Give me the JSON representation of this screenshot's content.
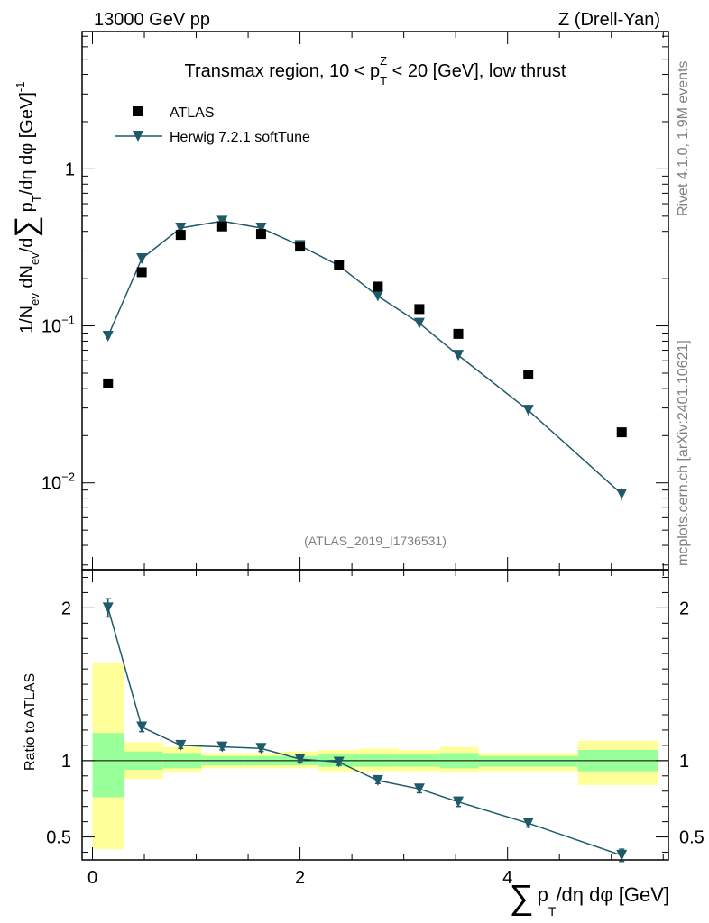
{
  "header": {
    "energy_label": "13000 GeV pp",
    "process_label": "Z (Drell-Yan)"
  },
  "side_labels": {
    "rivet_label": "Rivet 4.1.0,  1.9M events",
    "source_label": "mcplots.cern.ch [arXiv:2401.10621]"
  },
  "colors": {
    "data": "#000000",
    "mc": "#1f5a6b",
    "band_inner": "#99ff99",
    "band_outer": "#ffff99"
  },
  "chart_data": [
    {
      "type": "scatter",
      "panel": "main",
      "title": "Transmax region, 10 < p_T^Z < 20 [GeV], low thrust",
      "title_parts": {
        "prefix": "Transmax region, 10 < p",
        "sub": "T",
        "sup": "Z",
        "suffix": " < 20 [GeV], low thrust"
      },
      "ylabel": "1/N_ev dN_ev/d∑ p_T /dη dφ  [GeV]^-1",
      "ylabel_parts": {
        "a": "1/N",
        "a_sub": "ev",
        "b": " dN",
        "b_sub": "ev",
        "c": "/d",
        "sum": "∑",
        "d": "p",
        "d_sub": "T",
        "e": "/dη dφ  [GeV]",
        "e_sup": "-1"
      },
      "yscale": "log",
      "ylim": [
        0.0028,
        7.5
      ],
      "xlim": [
        -0.1,
        5.55
      ],
      "y_ticks": [
        {
          "v": 0.01,
          "base": "10",
          "exp": "−2"
        },
        {
          "v": 0.1,
          "base": "10",
          "exp": "−1"
        },
        {
          "v": 1,
          "base": "1",
          "exp": ""
        }
      ],
      "analysis_label": "(ATLAS_2019_I1736531)",
      "legend_position": "top-left",
      "series": [
        {
          "name": "ATLAS",
          "marker": "square",
          "x": [
            0.15,
            0.475,
            0.85,
            1.25,
            1.625,
            2.0,
            2.375,
            2.75,
            3.15,
            3.525,
            4.2,
            5.1
          ],
          "y": [
            0.043,
            0.22,
            0.38,
            0.43,
            0.385,
            0.32,
            0.245,
            0.178,
            0.128,
            0.089,
            0.049,
            0.021
          ]
        },
        {
          "name": "Herwig 7.2.1 softTune",
          "marker": "triangle-down",
          "x": [
            0.15,
            0.475,
            0.85,
            1.25,
            1.625,
            2.0,
            2.375,
            2.75,
            3.15,
            3.525,
            4.2,
            5.1
          ],
          "y": [
            0.086,
            0.268,
            0.42,
            0.465,
            0.42,
            0.325,
            0.242,
            0.155,
            0.104,
            0.065,
            0.029,
            0.0085
          ],
          "yerr": [
            0.003,
            0.006,
            0.008,
            0.009,
            0.008,
            0.006,
            0.005,
            0.004,
            0.003,
            0.002,
            0.0012,
            0.0008
          ]
        }
      ]
    },
    {
      "type": "scatter",
      "panel": "ratio",
      "ylabel": "Ratio to ATLAS",
      "xlabel": "∑ p_T /dη dφ [GeV]",
      "xlabel_parts": {
        "sum": "∑",
        "p": "p",
        "sub": "T",
        "rest": "/dη dφ [GeV]"
      },
      "ylim": [
        0.35,
        2.25
      ],
      "xlim": [
        -0.1,
        5.55
      ],
      "x_ticks": [
        0,
        2,
        4
      ],
      "y_ticks": [
        0.5,
        1,
        2
      ],
      "y_tick_labels": [
        "0.5",
        "1",
        "2"
      ],
      "x_tick_labels": [
        "0",
        "2",
        "4"
      ],
      "reference_line": 1,
      "bands": [
        {
          "x0": 0.0,
          "x1": 0.3,
          "inner": [
            0.76,
            1.18
          ],
          "outer": [
            0.42,
            1.64
          ]
        },
        {
          "x0": 0.3,
          "x1": 0.68,
          "inner": [
            0.94,
            1.06
          ],
          "outer": [
            0.88,
            1.12
          ]
        },
        {
          "x0": 0.68,
          "x1": 1.05,
          "inner": [
            0.95,
            1.05
          ],
          "outer": [
            0.92,
            1.09
          ]
        },
        {
          "x0": 1.05,
          "x1": 1.45,
          "inner": [
            0.97,
            1.03
          ],
          "outer": [
            0.95,
            1.05
          ]
        },
        {
          "x0": 1.45,
          "x1": 1.82,
          "inner": [
            0.97,
            1.03
          ],
          "outer": [
            0.95,
            1.05
          ]
        },
        {
          "x0": 1.82,
          "x1": 2.18,
          "inner": [
            0.97,
            1.03
          ],
          "outer": [
            0.95,
            1.06
          ]
        },
        {
          "x0": 2.18,
          "x1": 2.57,
          "inner": [
            0.96,
            1.04
          ],
          "outer": [
            0.93,
            1.07
          ]
        },
        {
          "x0": 2.57,
          "x1": 2.95,
          "inner": [
            0.96,
            1.04
          ],
          "outer": [
            0.93,
            1.08
          ]
        },
        {
          "x0": 2.95,
          "x1": 3.35,
          "inner": [
            0.96,
            1.04
          ],
          "outer": [
            0.93,
            1.07
          ]
        },
        {
          "x0": 3.35,
          "x1": 3.72,
          "inner": [
            0.95,
            1.05
          ],
          "outer": [
            0.92,
            1.09
          ]
        },
        {
          "x0": 3.72,
          "x1": 4.68,
          "inner": [
            0.96,
            1.03
          ],
          "outer": [
            0.93,
            1.05
          ]
        },
        {
          "x0": 4.68,
          "x1": 5.45,
          "inner": [
            0.93,
            1.07
          ],
          "outer": [
            0.84,
            1.13
          ]
        }
      ],
      "series": [
        {
          "name": "Herwig 7.2.1 softTune / ATLAS",
          "marker": "triangle-down",
          "x": [
            0.15,
            0.475,
            0.85,
            1.25,
            1.625,
            2.0,
            2.375,
            2.75,
            3.15,
            3.525,
            4.2,
            5.1
          ],
          "y": [
            2.0,
            1.22,
            1.1,
            1.09,
            1.08,
            1.01,
            0.99,
            0.87,
            0.815,
            0.73,
            0.59,
            0.38
          ],
          "yerr": [
            0.06,
            0.03,
            0.02,
            0.02,
            0.02,
            0.02,
            0.02,
            0.02,
            0.025,
            0.03,
            0.025,
            0.04
          ]
        }
      ]
    }
  ]
}
